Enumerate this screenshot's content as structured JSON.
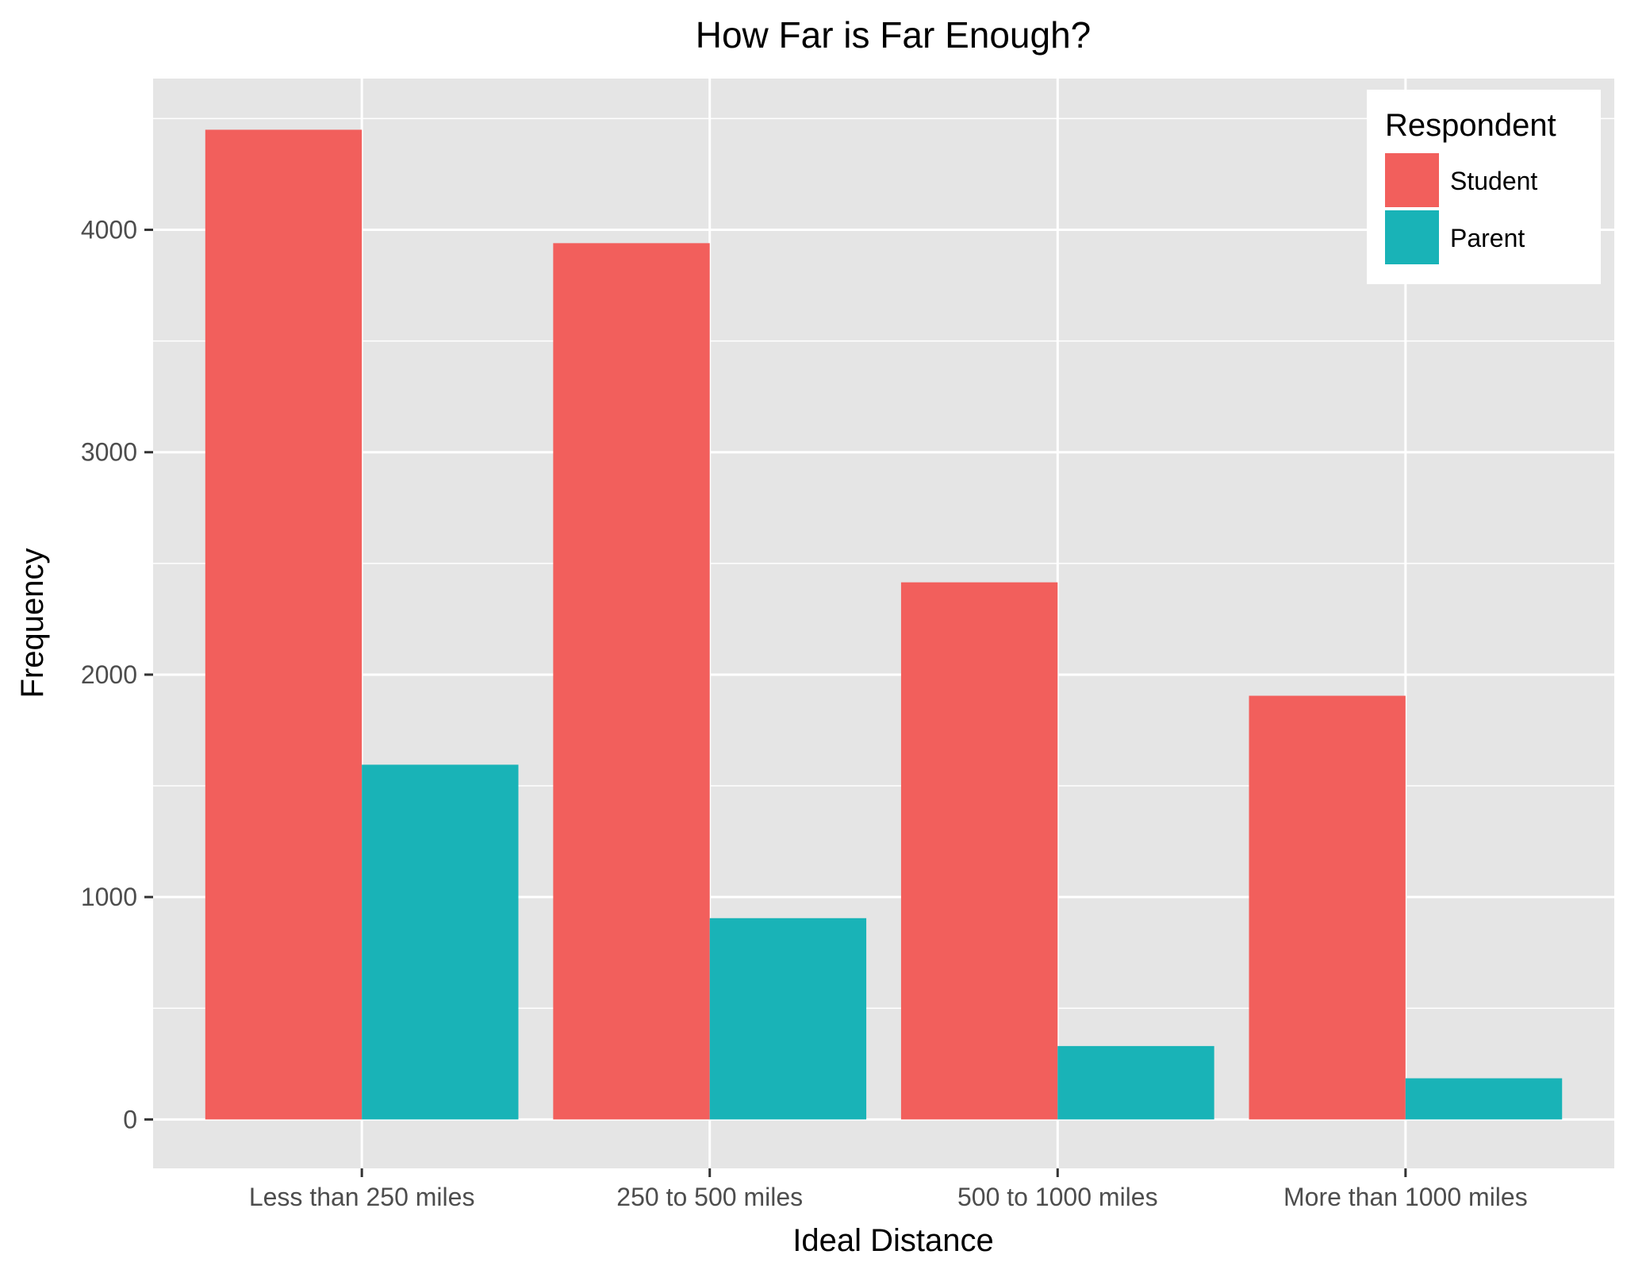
{
  "chart_data": {
    "type": "bar",
    "title": "How Far is Far Enough?",
    "xlabel": "Ideal Distance",
    "ylabel": "Frequency",
    "categories": [
      "Less than 250 miles",
      "250 to 500 miles",
      "500 to 1000 miles",
      "More than 1000 miles"
    ],
    "series": [
      {
        "name": "Student",
        "color": "#F25F5C",
        "values": [
          4450,
          3940,
          2415,
          1905
        ]
      },
      {
        "name": "Parent",
        "color": "#19B3B7",
        "values": [
          1595,
          905,
          330,
          185
        ]
      }
    ],
    "yticks": [
      0,
      1000,
      2000,
      3000,
      4000
    ],
    "ylim": [
      -220,
      4680
    ],
    "grid": true,
    "legend": {
      "title": "Respondent",
      "position": "top-right"
    },
    "colors": {
      "panel_background": "#E5E5E5",
      "grid": "#FFFFFF"
    }
  }
}
